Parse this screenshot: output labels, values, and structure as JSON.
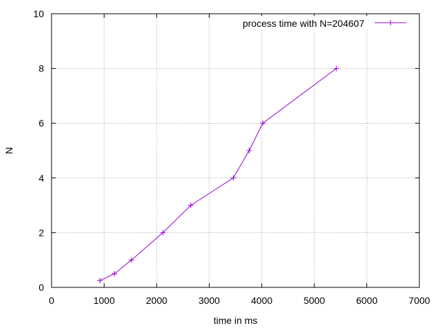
{
  "chart_data": {
    "type": "line",
    "title": "",
    "xlabel": "time in ms",
    "ylabel": "N",
    "xlim": [
      0,
      7000
    ],
    "ylim": [
      0,
      10
    ],
    "xticks": [
      "0",
      "1000",
      "2000",
      "3000",
      "4000",
      "5000",
      "6000",
      "7000"
    ],
    "yticks": [
      "0",
      "2",
      "4",
      "6",
      "8",
      "10"
    ],
    "grid": true,
    "legend_position": "top-right",
    "series": [
      {
        "name": "process time with N=204607",
        "color": "#9400d3",
        "marker": "plus",
        "x": [
          920,
          1200,
          1520,
          2120,
          2650,
          3460,
          3760,
          4020,
          5420
        ],
        "y": [
          0.25,
          0.5,
          1,
          2,
          3,
          4,
          5,
          6,
          8
        ]
      }
    ]
  }
}
